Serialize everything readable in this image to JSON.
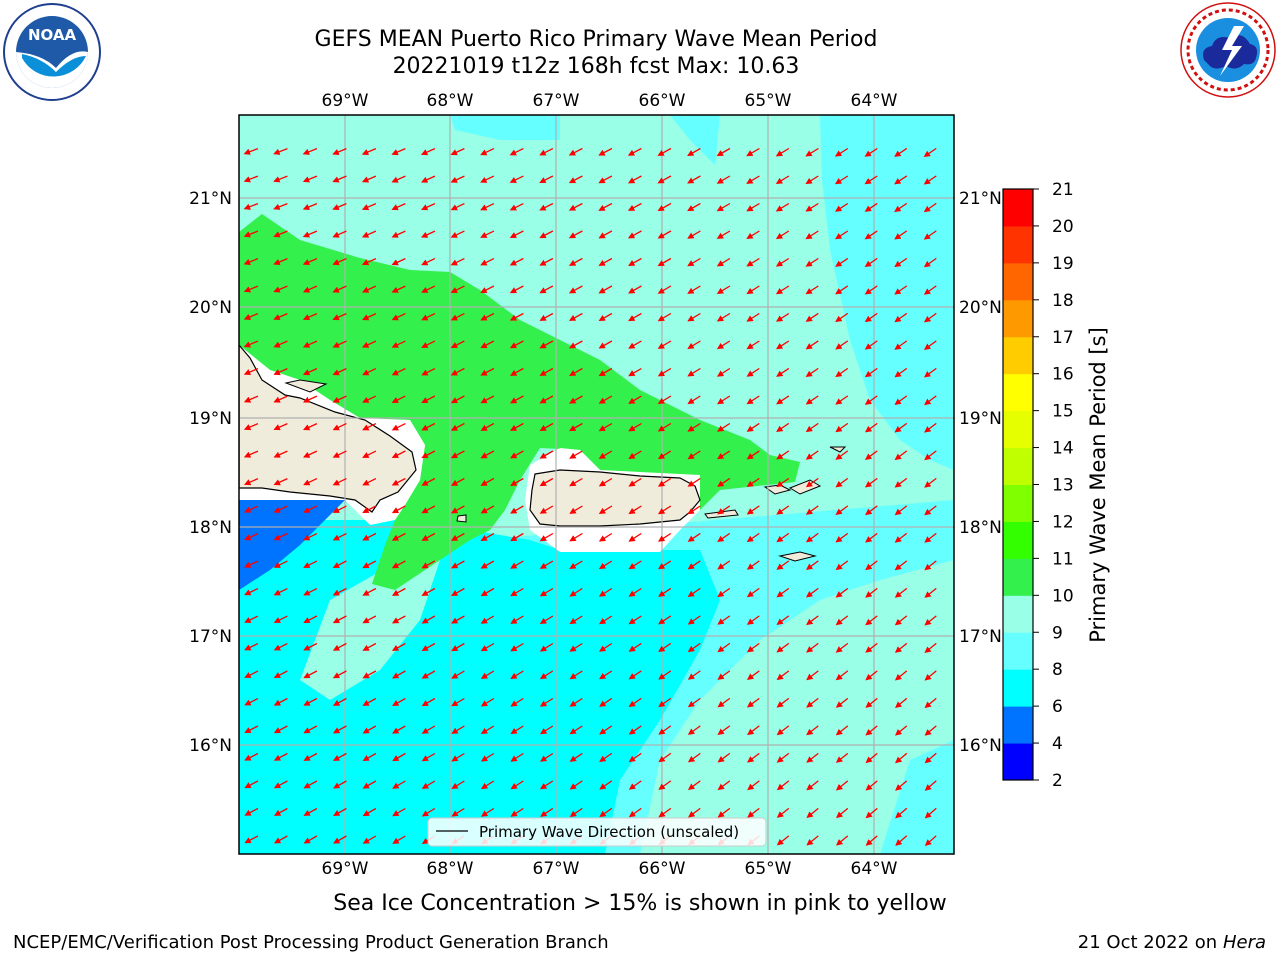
{
  "header": {
    "title_line1": "GEFS MEAN Puerto Rico Primary Wave Mean Period",
    "title_line2": "20221019 t12z 168h fcst   Max: 10.63"
  },
  "logos": {
    "left": "noaa-logo",
    "right": "nws-logo"
  },
  "map": {
    "lon_ticks": [
      "69°W",
      "68°W",
      "67°W",
      "66°W",
      "65°W",
      "64°W"
    ],
    "lat_ticks": [
      "21°N",
      "20°N",
      "19°N",
      "18°N",
      "17°N",
      "16°N"
    ],
    "legend_label": "Primary Wave Direction (unscaled)",
    "arrow_color": "#ff0000",
    "land_color": "#efecdc"
  },
  "colorbar": {
    "title": "Primary Wave Mean Period [s]",
    "levels": [
      "2",
      "4",
      "6",
      "8",
      "9",
      "10",
      "11",
      "12",
      "13",
      "14",
      "15",
      "16",
      "17",
      "18",
      "19",
      "20",
      "21"
    ],
    "colors": [
      "#0000ff",
      "#0073ff",
      "#00ffff",
      "#66ffff",
      "#99ffe6",
      "#33f04d",
      "#33ff00",
      "#80ff00",
      "#bfff00",
      "#e6ff00",
      "#ffff00",
      "#ffcc00",
      "#ff9900",
      "#ff6600",
      "#ff3300",
      "#ff0000"
    ]
  },
  "footer": {
    "ice_note": "Sea Ice Concentration > 15% is shown in pink to yellow",
    "left": "NCEP/EMC/Verification Post Processing Product Generation Branch",
    "right_date": "21 Oct 2022 on ",
    "right_host": "Hera"
  }
}
